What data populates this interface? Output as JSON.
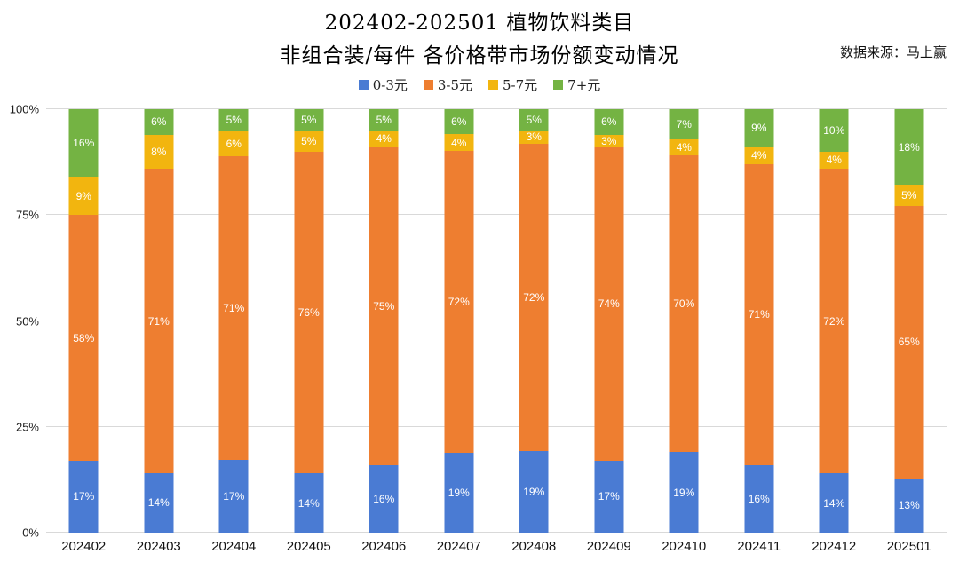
{
  "title": {
    "line1": "202402-202501 植物饮料类目",
    "line2": "非组合装/每件 各价格带市场份额变动情况"
  },
  "source": "数据来源：马上赢",
  "chart_data": {
    "type": "bar",
    "stacked": true,
    "percent_stacked": true,
    "title": "202402-202501 植物饮料类目 非组合装/每件 各价格带市场份额变动情况",
    "categories": [
      "202402",
      "202403",
      "202404",
      "202405",
      "202406",
      "202407",
      "202408",
      "202409",
      "202410",
      "202411",
      "202412",
      "202501"
    ],
    "series": [
      {
        "key": "band-0-3",
        "name": "0-3元",
        "color": "#4a7bd3",
        "values": [
          17,
          14,
          17,
          14,
          16,
          19,
          19,
          17,
          19,
          16,
          14,
          13
        ]
      },
      {
        "key": "band-3-5",
        "name": "3-5元",
        "color": "#ee7e30",
        "values": [
          58,
          71,
          71,
          76,
          75,
          72,
          72,
          74,
          70,
          71,
          72,
          65
        ]
      },
      {
        "key": "band-5-7",
        "name": "5-7元",
        "color": "#f2b50f",
        "values": [
          9,
          8,
          6,
          5,
          4,
          4,
          3,
          3,
          4,
          4,
          4,
          5
        ]
      },
      {
        "key": "band-7plus",
        "name": "7+元",
        "color": "#74b343",
        "values": [
          16,
          6,
          5,
          5,
          5,
          6,
          5,
          6,
          7,
          9,
          10,
          18
        ]
      }
    ],
    "value_suffix": "%",
    "xlabel": "",
    "ylabel": "",
    "ylim": [
      0,
      100
    ],
    "ytick_labels": [
      "0%",
      "25%",
      "50%",
      "75%",
      "100%"
    ],
    "ytick_values": [
      0,
      25,
      50,
      75,
      100
    ],
    "grid": true,
    "gridline_color": "#d9d9d9",
    "legend_position": "top",
    "label_color": "#ffffff"
  }
}
